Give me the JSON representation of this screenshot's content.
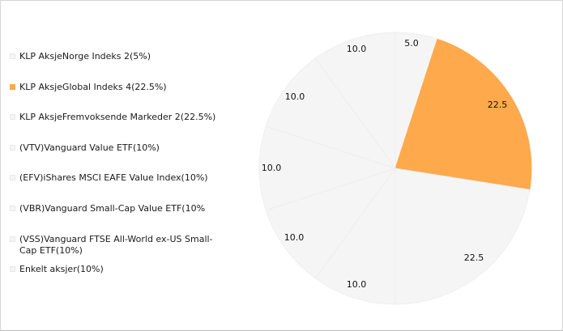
{
  "chart_data": {
    "type": "pie",
    "start_angle_deg": 0,
    "direction": "clockwise",
    "slices": [
      {
        "label": "KLP AksjeNorge Indeks 2(5%)",
        "value": 5.0,
        "value_label": "5.0",
        "color": "#f5f5f5"
      },
      {
        "label": "KLP AksjeGlobal Indeks 4(22.5%)",
        "value": 22.5,
        "value_label": "22.5",
        "color": "#ffa94d"
      },
      {
        "label": "KLP AksjeFremvoksende Markeder 2(22.5%)",
        "value": 22.5,
        "value_label": "22.5",
        "color": "#f5f5f5"
      },
      {
        "label": "(VTV)Vanguard Value ETF(10%)",
        "value": 10.0,
        "value_label": "10.0",
        "color": "#f5f5f5"
      },
      {
        "label": "(EFV)iShares MSCI EAFE Value Index(10%)",
        "value": 10.0,
        "value_label": "10.0",
        "color": "#f5f5f5"
      },
      {
        "label": "(VBR)Vanguard Small-Cap Value ETF(10%",
        "value": 10.0,
        "value_label": "10.0",
        "color": "#f5f5f5"
      },
      {
        "label": "(VSS)Vanguard FTSE All-World ex-US Small-Cap ETF(10%)",
        "value": 10.0,
        "value_label": "10.0",
        "color": "#f5f5f5"
      },
      {
        "label": "Enkelt aksjer(10%)",
        "value": 10.0,
        "value_label": "10.0",
        "color": "#f5f5f5"
      }
    ],
    "legend_position": "left"
  }
}
